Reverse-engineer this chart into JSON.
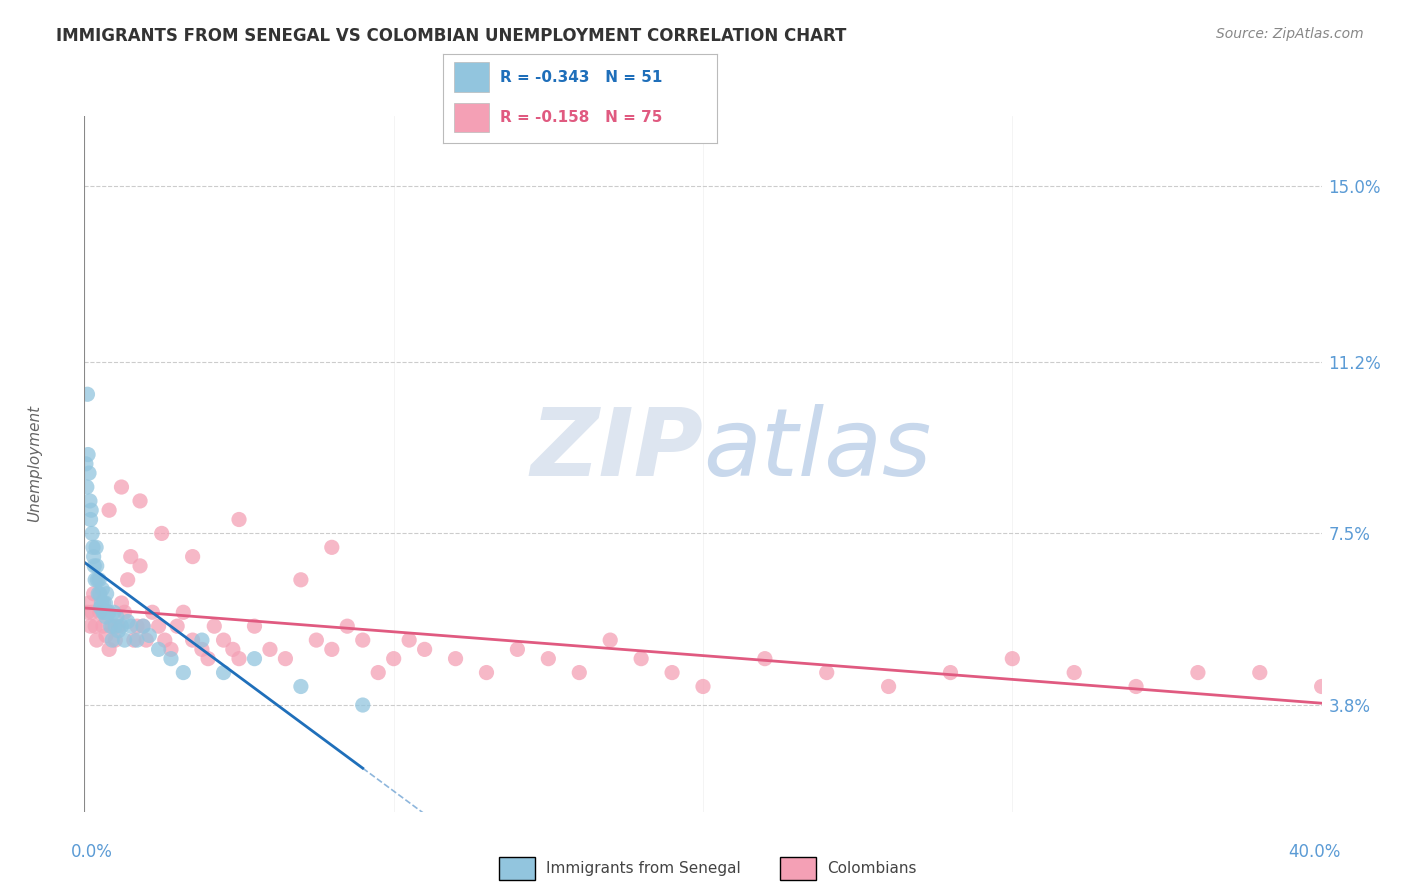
{
  "title": "IMMIGRANTS FROM SENEGAL VS COLOMBIAN UNEMPLOYMENT CORRELATION CHART",
  "source": "Source: ZipAtlas.com",
  "ylabel": "Unemployment",
  "y_ticks": [
    3.8,
    7.5,
    11.2,
    15.0
  ],
  "x_range": [
    0.0,
    40.0
  ],
  "y_range": [
    1.5,
    16.5
  ],
  "legend_blue_r": "R = -0.343",
  "legend_blue_n": "N = 51",
  "legend_pink_r": "R = -0.158",
  "legend_pink_n": "N = 75",
  "legend_label_blue": "Immigrants from Senegal",
  "legend_label_pink": "Colombians",
  "blue_color": "#92c5de",
  "pink_color": "#f4a0b5",
  "blue_line_color": "#1f6fba",
  "pink_line_color": "#e05a80",
  "blue_scatter_x": [
    0.05,
    0.08,
    0.1,
    0.12,
    0.15,
    0.18,
    0.2,
    0.22,
    0.25,
    0.28,
    0.3,
    0.32,
    0.35,
    0.38,
    0.4,
    0.42,
    0.45,
    0.48,
    0.5,
    0.52,
    0.55,
    0.58,
    0.6,
    0.62,
    0.65,
    0.68,
    0.7,
    0.72,
    0.75,
    0.8,
    0.85,
    0.9,
    0.95,
    1.0,
    1.05,
    1.1,
    1.2,
    1.3,
    1.4,
    1.5,
    1.7,
    1.9,
    2.1,
    2.4,
    2.8,
    3.2,
    3.8,
    4.5,
    5.5,
    7.0,
    9.0
  ],
  "blue_scatter_y": [
    9.0,
    8.5,
    10.5,
    9.2,
    8.8,
    8.2,
    7.8,
    8.0,
    7.5,
    7.2,
    7.0,
    6.8,
    6.5,
    7.2,
    6.8,
    6.5,
    6.2,
    6.5,
    6.2,
    5.9,
    6.0,
    6.3,
    5.8,
    6.0,
    5.8,
    6.0,
    5.7,
    6.2,
    5.8,
    5.8,
    5.5,
    5.2,
    5.8,
    5.5,
    5.7,
    5.4,
    5.5,
    5.2,
    5.6,
    5.5,
    5.2,
    5.5,
    5.3,
    5.0,
    4.8,
    4.5,
    5.2,
    4.5,
    4.8,
    4.2,
    3.8
  ],
  "pink_scatter_x": [
    0.1,
    0.15,
    0.2,
    0.25,
    0.3,
    0.35,
    0.4,
    0.5,
    0.6,
    0.7,
    0.8,
    0.9,
    1.0,
    1.1,
    1.2,
    1.3,
    1.4,
    1.5,
    1.6,
    1.7,
    1.8,
    1.9,
    2.0,
    2.2,
    2.4,
    2.6,
    2.8,
    3.0,
    3.2,
    3.5,
    3.8,
    4.0,
    4.2,
    4.5,
    4.8,
    5.0,
    5.5,
    6.0,
    6.5,
    7.0,
    7.5,
    8.0,
    8.5,
    9.0,
    9.5,
    10.0,
    10.5,
    11.0,
    12.0,
    13.0,
    14.0,
    15.0,
    16.0,
    17.0,
    18.0,
    19.0,
    20.0,
    22.0,
    24.0,
    26.0,
    28.0,
    30.0,
    32.0,
    34.0,
    36.0,
    38.0,
    40.0,
    0.8,
    1.2,
    1.8,
    2.5,
    3.5,
    5.0,
    8.0
  ],
  "pink_scatter_y": [
    5.8,
    6.0,
    5.5,
    5.8,
    6.2,
    5.5,
    5.2,
    5.8,
    5.5,
    5.3,
    5.0,
    5.5,
    5.2,
    5.5,
    6.0,
    5.8,
    6.5,
    7.0,
    5.2,
    5.5,
    6.8,
    5.5,
    5.2,
    5.8,
    5.5,
    5.2,
    5.0,
    5.5,
    5.8,
    5.2,
    5.0,
    4.8,
    5.5,
    5.2,
    5.0,
    4.8,
    5.5,
    5.0,
    4.8,
    6.5,
    5.2,
    5.0,
    5.5,
    5.2,
    4.5,
    4.8,
    5.2,
    5.0,
    4.8,
    4.5,
    5.0,
    4.8,
    4.5,
    5.2,
    4.8,
    4.5,
    4.2,
    4.8,
    4.5,
    4.2,
    4.5,
    4.8,
    4.5,
    4.2,
    4.5,
    4.5,
    4.2,
    8.0,
    8.5,
    8.2,
    7.5,
    7.0,
    7.8,
    7.2
  ],
  "background_color": "#ffffff",
  "grid_color": "#cccccc",
  "watermark_color": "#dde5f0",
  "title_color": "#333333",
  "tick_label_color": "#5b9bd5",
  "axis_line_color": "#aaaaaa"
}
